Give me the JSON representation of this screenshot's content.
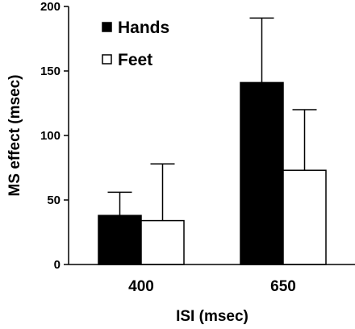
{
  "chart_data": {
    "type": "bar",
    "title": "",
    "xlabel": "ISI (msec)",
    "ylabel": "MS effect (msec)",
    "categories": [
      "400",
      "650"
    ],
    "ylim": [
      0,
      200
    ],
    "yticks": [
      0,
      50,
      100,
      150,
      200
    ],
    "series": [
      {
        "name": "Hands",
        "color": "#000000",
        "values": [
          38,
          141
        ],
        "error": [
          18,
          50
        ]
      },
      {
        "name": "Feet",
        "color": "#ffffff",
        "values": [
          34,
          73
        ],
        "error": [
          44,
          47
        ]
      }
    ],
    "legend_position": "top-left",
    "grid": false
  }
}
